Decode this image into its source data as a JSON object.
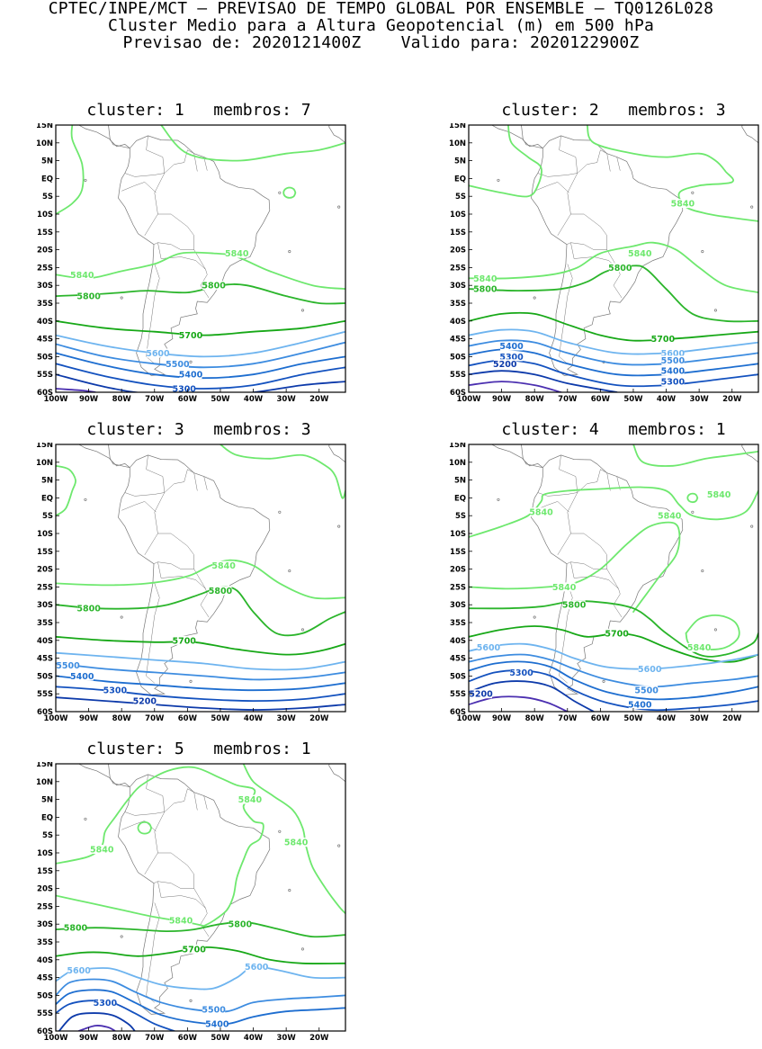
{
  "header": {
    "line1": "CPTEC/INPE/MCT – PREVISAO DE TEMPO GLOBAL POR ENSEMBLE – TQ0126L028",
    "line2": "Cluster Medio para a Altura Geopotencial (m) em 500 hPa",
    "line3": "Previsao de: 2020121400Z    Valido para: 2020122900Z"
  },
  "axes": {
    "lat_labels": [
      "15N",
      "10N",
      "5N",
      "EQ",
      "5S",
      "10S",
      "15S",
      "20S",
      "25S",
      "30S",
      "35S",
      "40S",
      "45S",
      "50S",
      "55S",
      "60S"
    ],
    "lon_labels": [
      "100W",
      "90W",
      "80W",
      "70W",
      "60W",
      "50W",
      "40W",
      "30W",
      "20W"
    ]
  },
  "colors": {
    "c5840": "#6ee86e",
    "c5800": "#2bb52b",
    "c5700": "#17a817",
    "c5600": "#6eb4ef",
    "c5500": "#3d8ce0",
    "c5400": "#1e6ed0",
    "c5300": "#1452bf",
    "c5200": "#0d3aaa",
    "c5100": "#4b2fb0",
    "map": "#777777"
  },
  "panels": [
    {
      "title": "cluster: 1   membros: 7",
      "contour_labels": [
        {
          "level": "5840",
          "text": "5840",
          "lon": -45,
          "lat": -21,
          "color": "c5840"
        },
        {
          "level": "5840",
          "text": "5840",
          "lon": -92,
          "lat": -27,
          "color": "c5840"
        },
        {
          "level": "5800",
          "text": "5800",
          "lon": -90,
          "lat": -33,
          "color": "c5800"
        },
        {
          "level": "5800",
          "text": "5800",
          "lon": -52,
          "lat": -30,
          "color": "c5800"
        },
        {
          "level": "5700",
          "text": "5700",
          "lon": -59,
          "lat": -44,
          "color": "c5700"
        },
        {
          "level": "5600",
          "text": "5600",
          "lon": -69,
          "lat": -49,
          "color": "c5600"
        },
        {
          "level": "5500",
          "text": "5500",
          "lon": -63,
          "lat": -52,
          "color": "c5500"
        },
        {
          "level": "5400",
          "text": "5400",
          "lon": -59,
          "lat": -55,
          "color": "c5400"
        },
        {
          "level": "5300",
          "text": "5300",
          "lon": -61,
          "lat": -59,
          "color": "c5300"
        }
      ]
    },
    {
      "title": "cluster: 2   membros: 3",
      "contour_labels": [
        {
          "level": "5840",
          "text": "5840",
          "lon": -35,
          "lat": -7,
          "color": "c5840"
        },
        {
          "level": "5840",
          "text": "5840",
          "lon": -48,
          "lat": -21,
          "color": "c5840"
        },
        {
          "level": "5840",
          "text": "5840",
          "lon": -95,
          "lat": -28,
          "color": "c5840"
        },
        {
          "level": "5800",
          "text": "5800",
          "lon": -54,
          "lat": -25,
          "color": "c5800"
        },
        {
          "level": "5800",
          "text": "5800",
          "lon": -95,
          "lat": -31,
          "color": "c5800"
        },
        {
          "level": "5700",
          "text": "5700",
          "lon": -41,
          "lat": -45,
          "color": "c5700"
        },
        {
          "level": "5600",
          "text": "5600",
          "lon": -38,
          "lat": -49,
          "color": "c5600"
        },
        {
          "level": "5500",
          "text": "5500",
          "lon": -38,
          "lat": -51,
          "color": "c5500"
        },
        {
          "level": "5400",
          "text": "5400",
          "lon": -87,
          "lat": -47,
          "color": "c5400"
        },
        {
          "level": "5400",
          "text": "5400",
          "lon": -38,
          "lat": -54,
          "color": "c5400"
        },
        {
          "level": "5300",
          "text": "5300",
          "lon": -87,
          "lat": -50,
          "color": "c5300"
        },
        {
          "level": "5300",
          "text": "5300",
          "lon": -38,
          "lat": -57,
          "color": "c5300"
        },
        {
          "level": "5200",
          "text": "5200",
          "lon": -89,
          "lat": -52,
          "color": "c5200"
        }
      ]
    },
    {
      "title": "cluster: 3   membros: 3",
      "contour_labels": [
        {
          "level": "5840",
          "text": "5840",
          "lon": -49,
          "lat": -19,
          "color": "c5840"
        },
        {
          "level": "5800",
          "text": "5800",
          "lon": -50,
          "lat": -26,
          "color": "c5800"
        },
        {
          "level": "5800",
          "text": "5800",
          "lon": -90,
          "lat": -31,
          "color": "c5800"
        },
        {
          "level": "5700",
          "text": "5700",
          "lon": -61,
          "lat": -40,
          "color": "c5700"
        },
        {
          "level": "5500",
          "text": "5500",
          "lon": -100,
          "lat": -47,
          "color": "c5500"
        },
        {
          "level": "5400",
          "text": "5400",
          "lon": -92,
          "lat": -50,
          "color": "c5400"
        },
        {
          "level": "5300",
          "text": "5300",
          "lon": -82,
          "lat": -54,
          "color": "c5300"
        },
        {
          "level": "5200",
          "text": "5200",
          "lon": -73,
          "lat": -57,
          "color": "c5200"
        }
      ]
    },
    {
      "title": "cluster: 4   membros: 1",
      "contour_labels": [
        {
          "level": "5840",
          "text": "5840",
          "lon": -24,
          "lat": 1,
          "color": "c5840"
        },
        {
          "level": "5840",
          "text": "5840",
          "lon": -78,
          "lat": -4,
          "color": "c5840"
        },
        {
          "level": "5840",
          "text": "5840",
          "lon": -39,
          "lat": -5,
          "color": "c5840"
        },
        {
          "level": "5840",
          "text": "5840",
          "lon": -71,
          "lat": -25,
          "color": "c5840"
        },
        {
          "level": "5840",
          "text": "5840",
          "lon": -30,
          "lat": -42,
          "color": "c5840"
        },
        {
          "level": "5800",
          "text": "5800",
          "lon": -68,
          "lat": -30,
          "color": "c5800"
        },
        {
          "level": "5700",
          "text": "5700",
          "lon": -55,
          "lat": -38,
          "color": "c5700"
        },
        {
          "level": "5600",
          "text": "5600",
          "lon": -94,
          "lat": -42,
          "color": "c5600"
        },
        {
          "level": "5600",
          "text": "5600",
          "lon": -45,
          "lat": -48,
          "color": "c5600"
        },
        {
          "level": "5500",
          "text": "5500",
          "lon": -46,
          "lat": -54,
          "color": "c5500"
        },
        {
          "level": "5400",
          "text": "5400",
          "lon": -48,
          "lat": -58,
          "color": "c5400"
        },
        {
          "level": "5300",
          "text": "5300",
          "lon": -84,
          "lat": -49,
          "color": "c5300"
        },
        {
          "level": "5200",
          "text": "5200",
          "lon": -100,
          "lat": -55,
          "color": "c5200"
        }
      ]
    },
    {
      "title": "cluster: 5   membros: 1",
      "contour_labels": [
        {
          "level": "5840",
          "text": "5840",
          "lon": -41,
          "lat": 5,
          "color": "c5840"
        },
        {
          "level": "5840",
          "text": "5840",
          "lon": -27,
          "lat": -7,
          "color": "c5840"
        },
        {
          "level": "5840",
          "text": "5840",
          "lon": -86,
          "lat": -9,
          "color": "c5840"
        },
        {
          "level": "5840",
          "text": "5840",
          "lon": -62,
          "lat": -29,
          "color": "c5840"
        },
        {
          "level": "5800",
          "text": "5800",
          "lon": -94,
          "lat": -31,
          "color": "c5800"
        },
        {
          "level": "5800",
          "text": "5800",
          "lon": -44,
          "lat": -30,
          "color": "c5800"
        },
        {
          "level": "5700",
          "text": "5700",
          "lon": -58,
          "lat": -37,
          "color": "c5700"
        },
        {
          "level": "5600",
          "text": "5600",
          "lon": -93,
          "lat": -43,
          "color": "c5600"
        },
        {
          "level": "5600",
          "text": "5600",
          "lon": -39,
          "lat": -42,
          "color": "c5600"
        },
        {
          "level": "5500",
          "text": "5500",
          "lon": -52,
          "lat": -54,
          "color": "c5500"
        },
        {
          "level": "5400",
          "text": "5400",
          "lon": -51,
          "lat": -58,
          "color": "c5400"
        },
        {
          "level": "5300",
          "text": "5300",
          "lon": -85,
          "lat": -52,
          "color": "c5300"
        }
      ]
    }
  ]
}
